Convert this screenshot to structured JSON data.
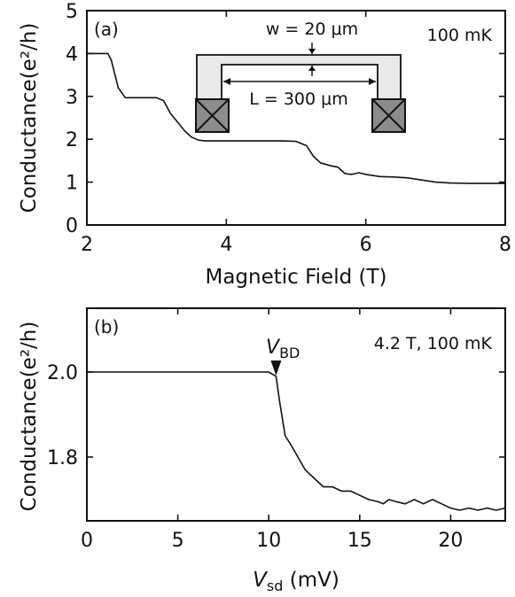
{
  "chart_data": [
    {
      "type": "line",
      "panel_label": "(a)",
      "annotation": "100 mK",
      "xlabel": "Magnetic Field (T)",
      "ylabel": "Conductance(e²/h)",
      "xlim": [
        2,
        8
      ],
      "ylim": [
        0,
        5
      ],
      "xticks": [
        2,
        4,
        6,
        8
      ],
      "yticks": [
        0,
        1,
        2,
        3,
        4,
        5
      ],
      "grid": false,
      "inset": {
        "w_label": "w = 20 μm",
        "L_label": "L = 300 μm"
      },
      "series": [
        {
          "x": [
            2.0,
            2.3,
            2.35,
            2.45,
            2.55,
            2.7,
            3.0,
            3.1,
            3.2,
            3.3,
            3.4,
            3.5,
            3.6,
            3.7,
            3.9,
            4.2,
            4.5,
            4.8,
            5.0,
            5.15,
            5.25,
            5.35,
            5.5,
            5.6,
            5.7,
            5.8,
            5.9,
            6.0,
            6.2,
            6.4,
            6.6,
            6.8,
            7.0,
            7.2,
            7.5,
            8.0
          ],
          "y": [
            4.0,
            4.0,
            3.85,
            3.2,
            2.97,
            2.97,
            2.97,
            2.9,
            2.6,
            2.4,
            2.2,
            2.05,
            1.98,
            1.96,
            1.96,
            1.96,
            1.96,
            1.96,
            1.95,
            1.85,
            1.6,
            1.45,
            1.38,
            1.35,
            1.2,
            1.18,
            1.22,
            1.18,
            1.13,
            1.12,
            1.1,
            1.05,
            1.0,
            0.98,
            0.97,
            0.97
          ]
        }
      ]
    },
    {
      "type": "line",
      "panel_label": "(b)",
      "annotation": "4.2 T, 100 mK",
      "marker_label": "V",
      "marker_sub": "BD",
      "marker_x": 10.4,
      "xlabel_main": "V",
      "xlabel_sub": "sd",
      "xlabel_unit": " (mV)",
      "ylabel": "Conductance(e²/h)",
      "xlim": [
        0,
        23
      ],
      "ylim": [
        1.65,
        2.15
      ],
      "xticks": [
        0,
        5,
        10,
        15,
        20
      ],
      "yticks": [
        1.8,
        2.0
      ],
      "grid": false,
      "series": [
        {
          "x": [
            0,
            1,
            2,
            3,
            4,
            5,
            6,
            7,
            8,
            9,
            9.5,
            10,
            10.4,
            10.6,
            10.9,
            11.2,
            11.6,
            12,
            12.5,
            13,
            13.5,
            14,
            14.5,
            15,
            15.5,
            16,
            16.3,
            16.6,
            17,
            17.5,
            18,
            18.5,
            19,
            19.5,
            20,
            20.5,
            21,
            21.5,
            22,
            22.5,
            23
          ],
          "y": [
            2.0,
            2.0,
            2.0,
            2.0,
            2.0,
            2.0,
            2.0,
            2.0,
            2.0,
            2.0,
            2.0,
            2.0,
            1.99,
            1.93,
            1.85,
            1.83,
            1.8,
            1.77,
            1.75,
            1.73,
            1.73,
            1.72,
            1.72,
            1.71,
            1.7,
            1.695,
            1.69,
            1.7,
            1.695,
            1.69,
            1.7,
            1.69,
            1.7,
            1.69,
            1.68,
            1.675,
            1.68,
            1.675,
            1.68,
            1.675,
            1.68
          ]
        }
      ]
    }
  ]
}
